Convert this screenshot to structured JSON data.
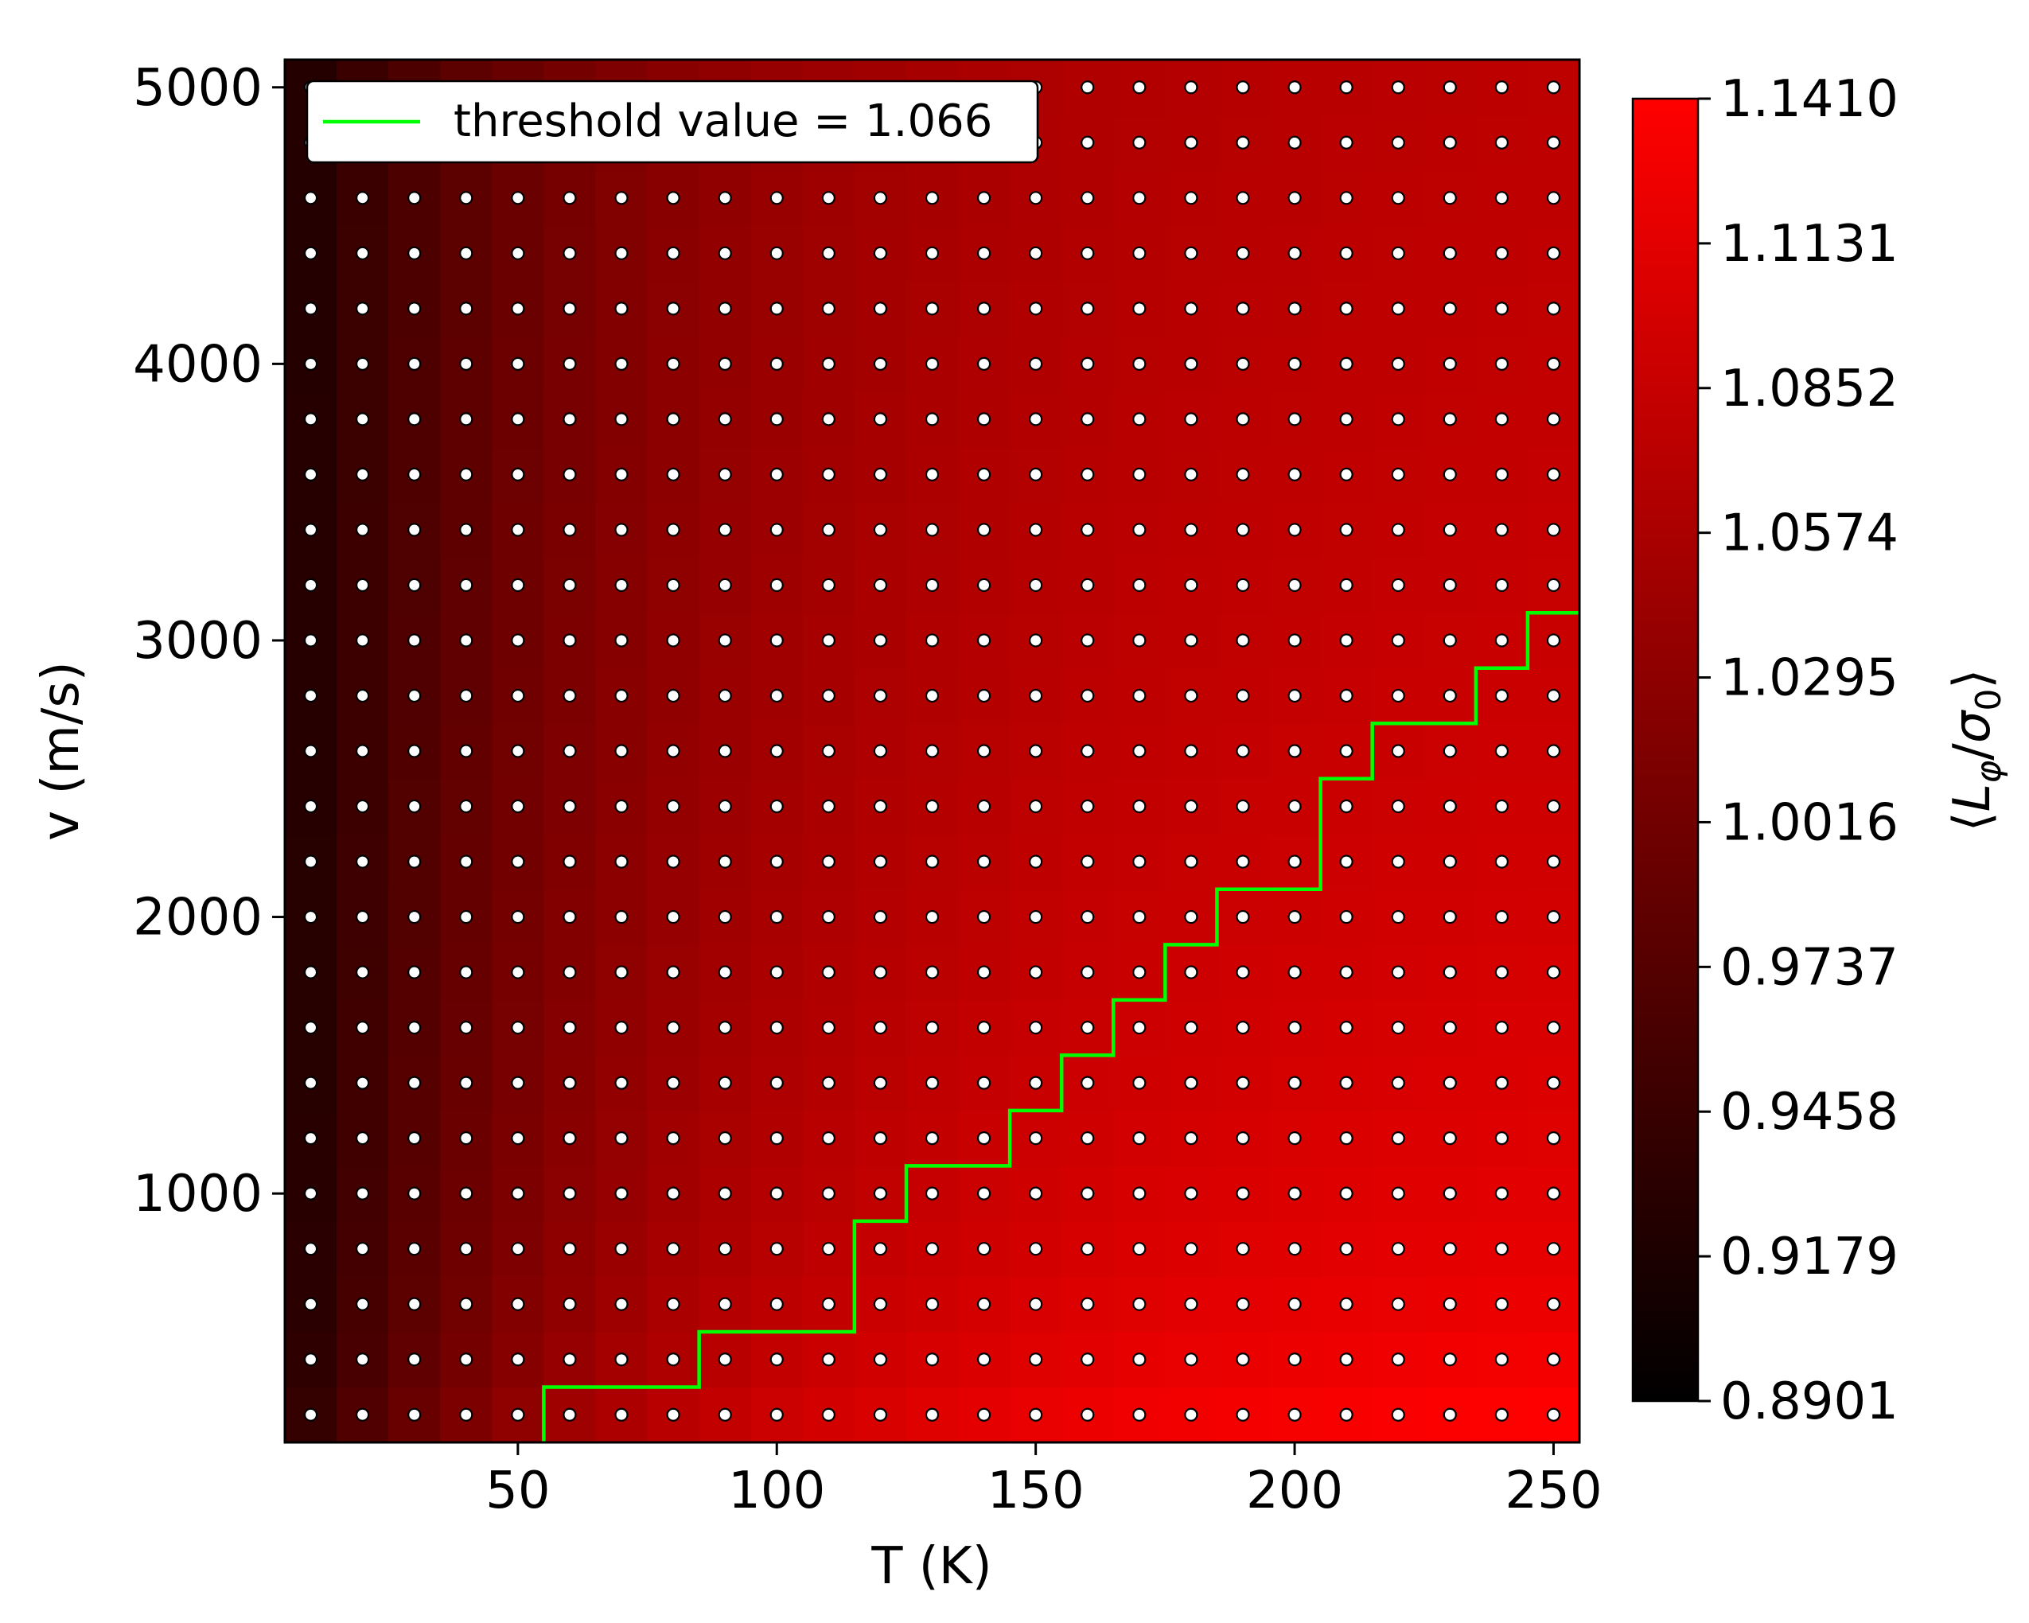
{
  "chart_data": {
    "type": "heatmap",
    "title": "",
    "xlabel": "T (K)",
    "ylabel": "v (m/s)",
    "xlim": [
      5,
      255
    ],
    "ylim": [
      100,
      5100
    ],
    "xticks": [
      50,
      100,
      150,
      200,
      250
    ],
    "yticks": [
      1000,
      2000,
      3000,
      4000,
      5000
    ],
    "grid_x": [
      10,
      20,
      30,
      40,
      50,
      60,
      70,
      80,
      90,
      100,
      110,
      120,
      130,
      140,
      150,
      160,
      170,
      180,
      190,
      200,
      210,
      220,
      230,
      240,
      250
    ],
    "grid_y": [
      200,
      400,
      600,
      800,
      1000,
      1200,
      1400,
      1600,
      1800,
      2000,
      2200,
      2400,
      2600,
      2800,
      3000,
      3200,
      3400,
      3600,
      3800,
      4000,
      4200,
      4400,
      4600,
      4800,
      5000
    ],
    "grid_visible": false,
    "colormap": {
      "name": "black-red",
      "colors": [
        "#000000",
        "#ff0000"
      ],
      "min": 0.8901,
      "max": 1.141,
      "label": "⟨L_φ/σ_0⟩",
      "tick_labels": [
        "1.1410",
        "1.1131",
        "1.0852",
        "1.0574",
        "1.0295",
        "1.0016",
        "0.9737",
        "0.9458",
        "0.9179",
        "0.8901"
      ]
    },
    "sample_points": {
      "marker": "circle",
      "fill": "#ffffff",
      "stroke": "#000000"
    },
    "threshold_contour": {
      "name": "threshold value = 1.066",
      "value": 1.066,
      "color": "#00ff00",
      "points": [
        [
          55,
          100
        ],
        [
          55,
          300
        ],
        [
          85,
          300
        ],
        [
          85,
          500
        ],
        [
          115,
          500
        ],
        [
          115,
          900
        ],
        [
          125,
          900
        ],
        [
          125,
          1100
        ],
        [
          145,
          1100
        ],
        [
          145,
          1300
        ],
        [
          155,
          1300
        ],
        [
          155,
          1500
        ],
        [
          165,
          1500
        ],
        [
          165,
          1700
        ],
        [
          175,
          1700
        ],
        [
          175,
          1900
        ],
        [
          185,
          1900
        ],
        [
          185,
          2100
        ],
        [
          205,
          2100
        ],
        [
          205,
          2500
        ],
        [
          215,
          2500
        ],
        [
          215,
          2700
        ],
        [
          235,
          2700
        ],
        [
          235,
          2900
        ],
        [
          245,
          2900
        ],
        [
          245,
          3100
        ],
        [
          255,
          3100
        ]
      ]
    },
    "legend": {
      "placement": "top-left",
      "entries": [
        "threshold value = 1.066"
      ]
    }
  }
}
